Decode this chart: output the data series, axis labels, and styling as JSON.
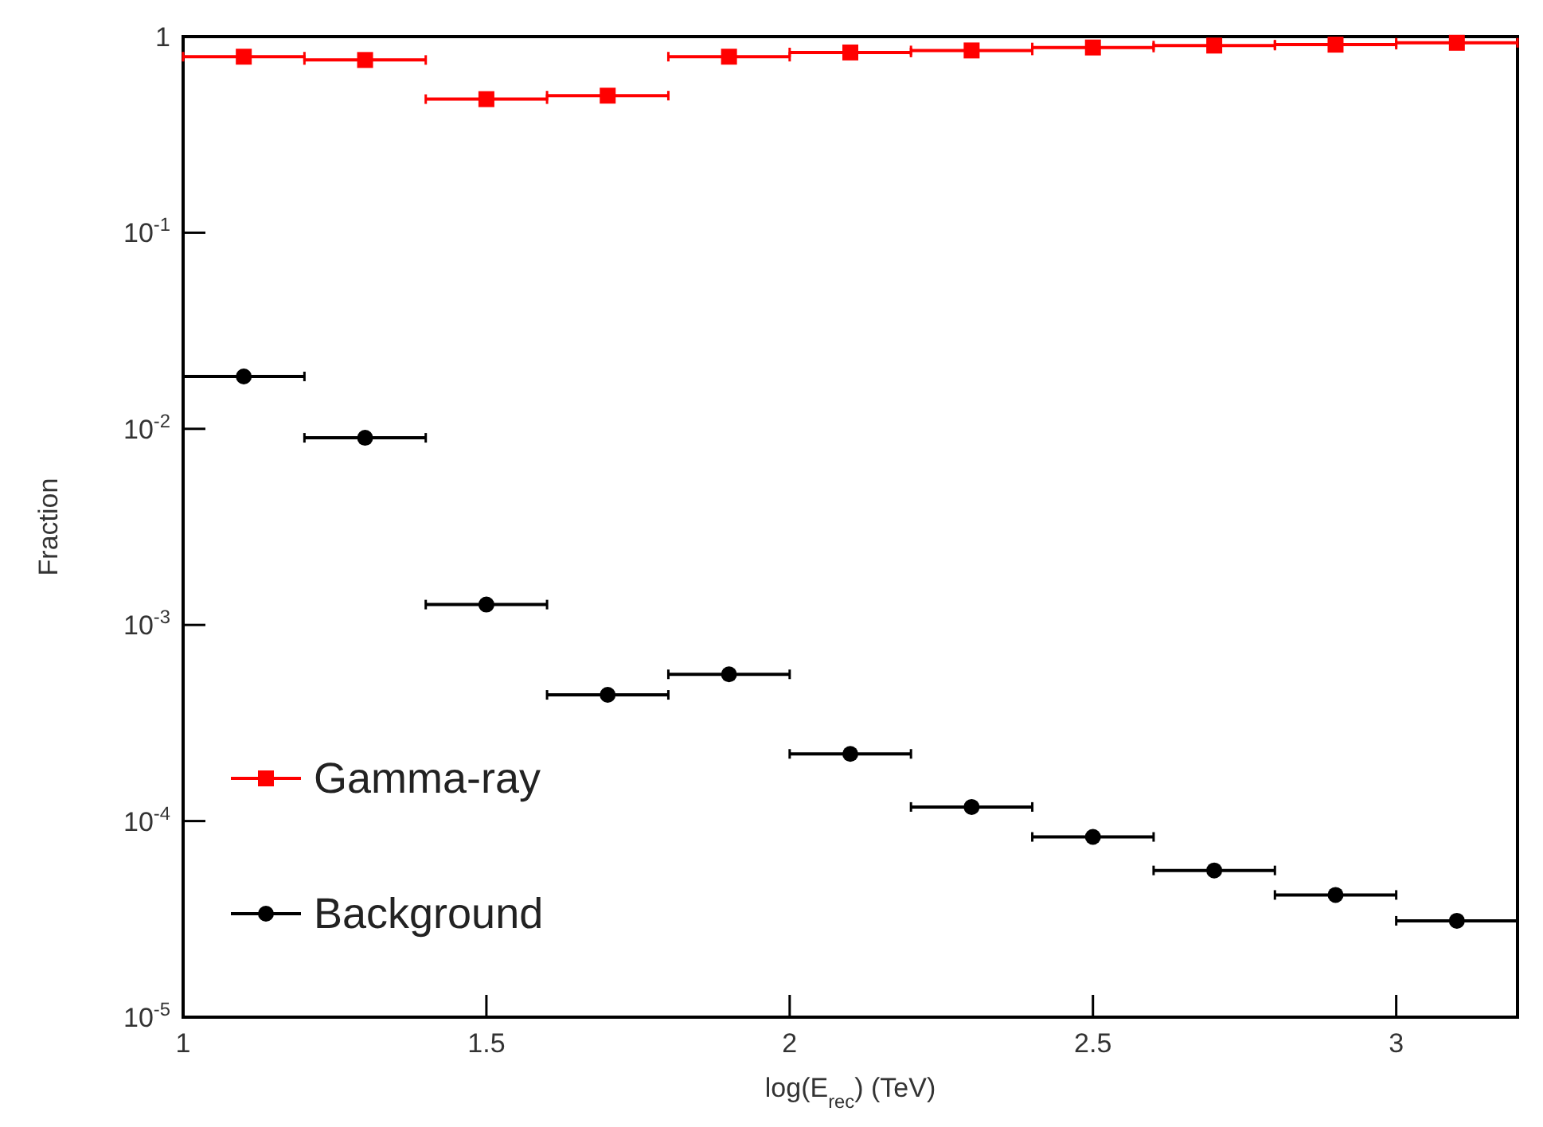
{
  "chart_data": {
    "type": "scatter",
    "xlabel": "log(E$_{rec}$) (TeV)",
    "ylabel": "Fraction",
    "log": "y",
    "legend": "bottom left",
    "grid": false,
    "x": [
      1.1,
      1.3,
      1.5,
      1.7,
      1.9,
      2.1,
      2.3,
      2.5,
      2.7,
      2.9,
      3.1
    ],
    "xlim": [
      1,
      3.2
    ],
    "xticks": [
      1,
      1.5,
      2,
      2.5,
      3
    ],
    "ylim": [
      1e-05,
      1
    ],
    "yticks": [
      {
        "value": 1e-05,
        "label": "10$^{-5}$"
      },
      {
        "value": 0.0001,
        "label": "10$^{-4}$"
      },
      {
        "value": 0.001,
        "label": "10$^{-3}$"
      },
      {
        "value": 0.01,
        "label": "10$^{-2}$"
      },
      {
        "value": 0.1,
        "label": "10$^{-1}$"
      },
      1
    ],
    "series": [
      {
        "name": "Gamma-ray",
        "color": "#ff0000",
        "marker": "square",
        "values": [
          0.79,
          0.76,
          0.48,
          0.5,
          0.79,
          0.83,
          0.85,
          0.88,
          0.9,
          0.91,
          0.93
        ],
        "xerrors": [
          0.1,
          0.1,
          0.1,
          0.1,
          0.1,
          0.1,
          0.1,
          0.1,
          0.1,
          0.1,
          0.1
        ]
      },
      {
        "name": "Background",
        "color": "#000000",
        "marker": "circle",
        "values": [
          0.0185,
          0.009,
          0.00127,
          0.00044,
          0.00056,
          0.00022,
          0.000118,
          8.3e-05,
          5.6e-05,
          4.2e-05,
          3.1e-05
        ],
        "xerrors": [
          0.1,
          0.1,
          0.1,
          0.1,
          0.1,
          0.1,
          0.1,
          0.1,
          0.1,
          0.1,
          0.1
        ]
      }
    ]
  }
}
